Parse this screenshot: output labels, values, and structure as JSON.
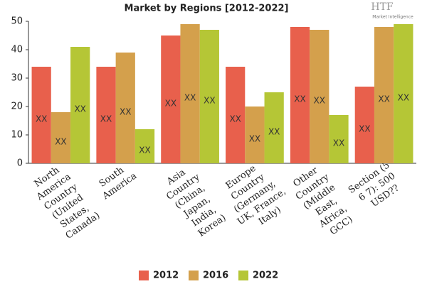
{
  "chart_data": {
    "type": "bar",
    "title": "Market by Regions [2012-2022]",
    "logo": {
      "mark": "HTF",
      "caption": "Market Intelligence"
    },
    "categories": [
      "North America Country (United States, Canada)",
      "South America",
      "Asia Country (China, Japan, India, Korea)",
      "Europe Country (Germany, UK, France, Italy)",
      "Other Country (Middle East, Africa, GCC)",
      "Section (5' 6 7): 500 USD??"
    ],
    "series": [
      {
        "name": "2012",
        "color": "#e8604c",
        "values": [
          34,
          34,
          45,
          34,
          48,
          27
        ],
        "value_labels": [
          "XX",
          "XX",
          "XX",
          "XX",
          "XX",
          "XX"
        ]
      },
      {
        "name": "2016",
        "color": "#d4a04c",
        "values": [
          18,
          39,
          49,
          20,
          47,
          48
        ],
        "value_labels": [
          "XX",
          "XX",
          "XX",
          "XX",
          "XX",
          "XX"
        ]
      },
      {
        "name": "2022",
        "color": "#b5c636",
        "values": [
          41,
          12,
          47,
          25,
          17,
          49
        ],
        "value_labels": [
          "XX",
          "XX",
          "XX",
          "XX",
          "XX",
          "XX"
        ]
      }
    ],
    "ylim": [
      0,
      50
    ],
    "yticks": [
      0,
      10,
      20,
      30,
      40,
      50
    ],
    "grid": false,
    "legend": "bottom"
  }
}
